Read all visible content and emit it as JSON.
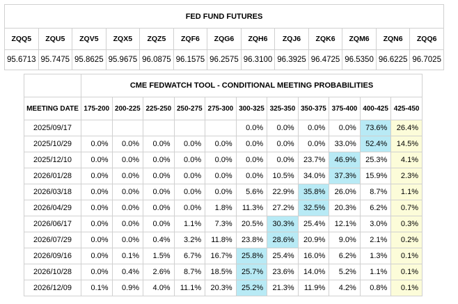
{
  "fed_fund_futures": {
    "title": "FED FUND FUTURES",
    "contracts": [
      "ZQQ5",
      "ZQU5",
      "ZQV5",
      "ZQX5",
      "ZQZ5",
      "ZQF6",
      "ZQG6",
      "ZQH6",
      "ZQJ6",
      "ZQK6",
      "ZQM6",
      "ZQN6",
      "ZQQ6"
    ],
    "prices": [
      "95.6713",
      "95.7475",
      "95.8625",
      "95.9675",
      "96.0875",
      "96.1575",
      "96.2575",
      "96.3100",
      "96.3925",
      "96.4725",
      "96.5350",
      "96.6225",
      "96.7025"
    ]
  },
  "fedwatch": {
    "title": "CME FEDWATCH TOOL - CONDITIONAL MEETING PROBABILITIES",
    "meeting_date_header": "MEETING DATE",
    "ranges": [
      "175-200",
      "200-225",
      "225-250",
      "250-275",
      "275-300",
      "300-325",
      "325-350",
      "350-375",
      "375-400",
      "400-425",
      "425-450"
    ],
    "rows": [
      {
        "date": "2025/09/17",
        "values": [
          "",
          "",
          "",
          "",
          "",
          "0.0%",
          "0.0%",
          "0.0%",
          "0.0%",
          "73.6%",
          "26.4%"
        ]
      },
      {
        "date": "2025/10/29",
        "values": [
          "0.0%",
          "0.0%",
          "0.0%",
          "0.0%",
          "0.0%",
          "0.0%",
          "0.0%",
          "0.0%",
          "33.0%",
          "52.4%",
          "14.5%"
        ]
      },
      {
        "date": "2025/12/10",
        "values": [
          "0.0%",
          "0.0%",
          "0.0%",
          "0.0%",
          "0.0%",
          "0.0%",
          "0.0%",
          "23.7%",
          "46.9%",
          "25.3%",
          "4.1%"
        ]
      },
      {
        "date": "2026/01/28",
        "values": [
          "0.0%",
          "0.0%",
          "0.0%",
          "0.0%",
          "0.0%",
          "0.0%",
          "10.5%",
          "34.0%",
          "37.3%",
          "15.9%",
          "2.3%"
        ]
      },
      {
        "date": "2026/03/18",
        "values": [
          "0.0%",
          "0.0%",
          "0.0%",
          "0.0%",
          "0.0%",
          "5.6%",
          "22.9%",
          "35.8%",
          "26.0%",
          "8.7%",
          "1.1%"
        ]
      },
      {
        "date": "2026/04/29",
        "values": [
          "0.0%",
          "0.0%",
          "0.0%",
          "0.0%",
          "1.8%",
          "11.3%",
          "27.2%",
          "32.5%",
          "20.3%",
          "6.2%",
          "0.7%"
        ]
      },
      {
        "date": "2026/06/17",
        "values": [
          "0.0%",
          "0.0%",
          "0.0%",
          "1.1%",
          "7.3%",
          "20.5%",
          "30.3%",
          "25.4%",
          "12.1%",
          "3.0%",
          "0.3%"
        ]
      },
      {
        "date": "2026/07/29",
        "values": [
          "0.0%",
          "0.0%",
          "0.4%",
          "3.2%",
          "11.8%",
          "23.8%",
          "28.6%",
          "20.9%",
          "9.0%",
          "2.1%",
          "0.2%"
        ]
      },
      {
        "date": "2026/09/16",
        "values": [
          "0.0%",
          "0.1%",
          "1.5%",
          "6.7%",
          "16.7%",
          "25.8%",
          "25.4%",
          "16.0%",
          "6.2%",
          "1.3%",
          "0.1%"
        ]
      },
      {
        "date": "2026/10/28",
        "values": [
          "0.0%",
          "0.4%",
          "2.6%",
          "8.7%",
          "18.5%",
          "25.7%",
          "23.6%",
          "14.0%",
          "5.2%",
          "1.1%",
          "0.1%"
        ]
      },
      {
        "date": "2026/12/09",
        "values": [
          "0.1%",
          "0.9%",
          "4.0%",
          "11.1%",
          "20.3%",
          "25.2%",
          "21.3%",
          "11.9%",
          "4.2%",
          "0.8%",
          "0.1%"
        ]
      }
    ],
    "highlight": {
      "blue": "#b8eaf5",
      "yellow": "#fcfcd9",
      "current_range": "425-450",
      "max_cells": [
        [
          0,
          9
        ],
        [
          1,
          9
        ],
        [
          2,
          8
        ],
        [
          3,
          8
        ],
        [
          4,
          7
        ],
        [
          5,
          7
        ],
        [
          6,
          6
        ],
        [
          7,
          6
        ],
        [
          8,
          5
        ],
        [
          9,
          5
        ],
        [
          10,
          5
        ]
      ]
    }
  }
}
